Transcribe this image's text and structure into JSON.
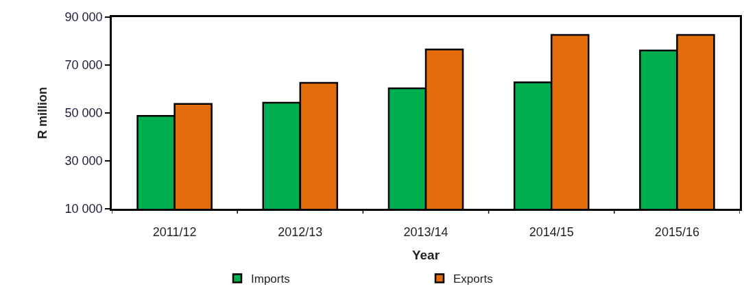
{
  "chart_data": {
    "type": "bar",
    "categories": [
      "2011/12",
      "2012/13",
      "2013/14",
      "2014/15",
      "2015/16"
    ],
    "series": [
      {
        "name": "Imports",
        "color": "#00ae4f",
        "values": [
          48800,
          54300,
          60300,
          62800,
          76100
        ]
      },
      {
        "name": "Exports",
        "color": "#e36c0a",
        "values": [
          53800,
          62600,
          76500,
          82600,
          82600
        ]
      }
    ],
    "xlabel": "Year",
    "ylabel": "R million",
    "ylim": [
      10000,
      90000
    ],
    "yticks": [
      {
        "value": 10000,
        "label": "10 000"
      },
      {
        "value": 30000,
        "label": "30 000"
      },
      {
        "value": 50000,
        "label": "50 000"
      },
      {
        "value": 70000,
        "label": "70 000"
      },
      {
        "value": 90000,
        "label": "90 000"
      }
    ],
    "legend": "bottom"
  }
}
